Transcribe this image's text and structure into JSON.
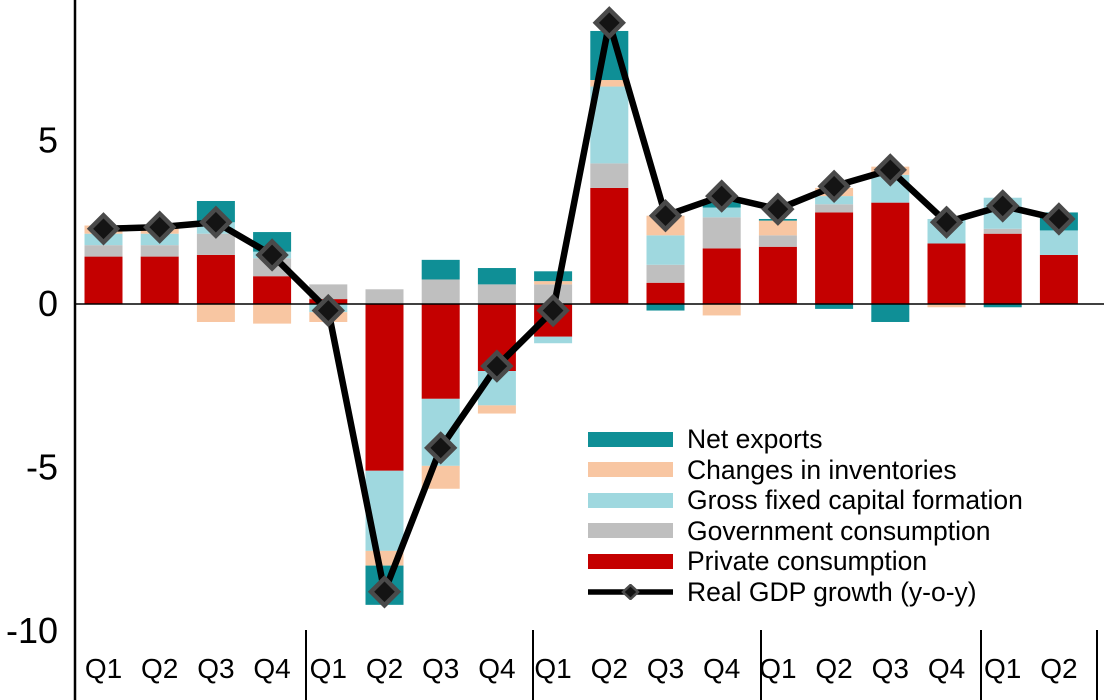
{
  "page": {
    "background": "#FFFFFF",
    "title": ""
  },
  "colors": {
    "private": "#C40000",
    "government": "#BFBFBF",
    "gfcf": "#9FD8DF",
    "inventories": "#F8C6A2",
    "net_exports": "#0F8F96",
    "line": "#000000",
    "diamond_fill": "#141414",
    "diamond_border": "#4A4A4A",
    "axis": "#000000",
    "text": "#000000"
  },
  "chart_data": {
    "type": "bar",
    "subtype": "stacked-column-with-line-overlay",
    "title": "",
    "xlabel": "",
    "ylabel": "",
    "grid": false,
    "yticks": [
      5,
      0,
      -5,
      -10
    ],
    "ylim": [
      -12.1,
      9.3
    ],
    "categories": [
      "Q1",
      "Q2",
      "Q3",
      "Q4",
      "Q1",
      "Q2",
      "Q3",
      "Q4",
      "Q1",
      "Q2",
      "Q3",
      "Q4",
      "Q1",
      "Q2",
      "Q3",
      "Q4",
      "Q1",
      "Q2"
    ],
    "year_group_sizes": [
      4,
      4,
      4,
      4,
      2
    ],
    "series": [
      {
        "key": "private",
        "name": "Private consumption",
        "values": [
          1.45,
          1.45,
          1.5,
          0.85,
          0.15,
          -5.1,
          -2.9,
          -2.05,
          -1.0,
          3.55,
          0.65,
          1.7,
          1.75,
          2.8,
          3.1,
          1.85,
          2.15,
          1.5
        ]
      },
      {
        "key": "government",
        "name": "Government consumption",
        "values": [
          0.35,
          0.35,
          0.65,
          0.55,
          0.45,
          0.45,
          0.75,
          0.6,
          0.6,
          0.75,
          0.55,
          0.95,
          0.35,
          0.25,
          0.0,
          0.0,
          0.15,
          0.0
        ]
      },
      {
        "key": "gfcf",
        "name": "Gross fixed capital formation",
        "values": [
          0.35,
          0.35,
          0.35,
          0.2,
          -0.25,
          -2.45,
          -2.05,
          -1.05,
          -0.2,
          2.35,
          0.9,
          0.3,
          0.0,
          0.25,
          0.85,
          0.75,
          0.95,
          0.75
        ]
      },
      {
        "key": "inventories",
        "name": "Changes in inventories",
        "values": [
          0.25,
          0.25,
          -0.55,
          -0.6,
          -0.3,
          -0.45,
          -0.7,
          -0.25,
          0.1,
          0.2,
          0.6,
          -0.35,
          0.45,
          0.25,
          0.25,
          -0.1,
          0.0,
          0.0
        ]
      },
      {
        "key": "net_exports",
        "name": "Net exports",
        "values": [
          0.0,
          0.0,
          0.65,
          0.6,
          0.0,
          -1.2,
          0.6,
          0.5,
          0.3,
          1.5,
          -0.2,
          0.2,
          0.05,
          -0.15,
          -0.55,
          0.0,
          -0.1,
          0.55
        ]
      }
    ],
    "line_series": {
      "key": "line",
      "name": "Real GDP growth (y-o-y)",
      "marker": "diamond",
      "values": [
        2.3,
        2.35,
        2.5,
        1.5,
        -0.2,
        -8.8,
        -4.4,
        -1.9,
        -0.2,
        8.6,
        2.7,
        3.3,
        2.9,
        3.6,
        4.1,
        2.5,
        3.0,
        2.6
      ]
    },
    "legend_position": "inside-lower-right"
  },
  "legend": {
    "items": [
      {
        "key": "net_exports",
        "label": "Net exports",
        "glyph": "swatch"
      },
      {
        "key": "inventories",
        "label": "Changes in inventories",
        "glyph": "swatch"
      },
      {
        "key": "gfcf",
        "label": "Gross fixed capital formation",
        "glyph": "swatch"
      },
      {
        "key": "government",
        "label": "Government consumption",
        "glyph": "swatch"
      },
      {
        "key": "private",
        "label": "Private consumption",
        "glyph": "swatch"
      },
      {
        "key": "line",
        "label": "Real GDP growth (y-o-y)",
        "glyph": "line-diamond"
      }
    ]
  }
}
